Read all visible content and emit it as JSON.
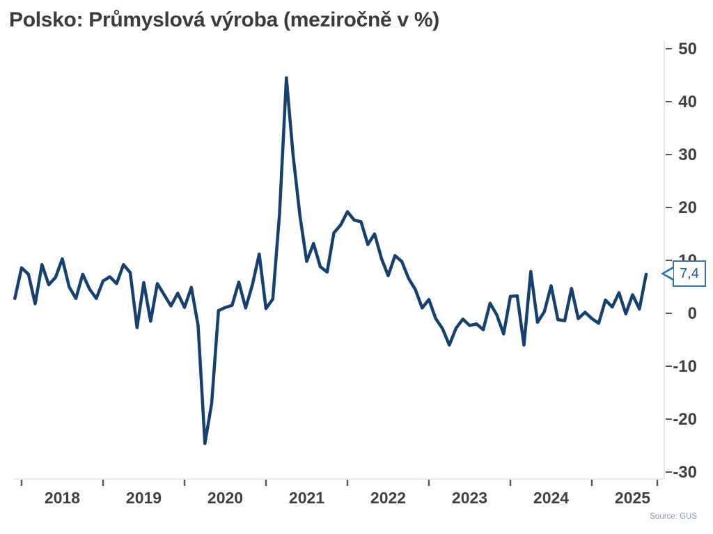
{
  "title": "Polsko: Průmyslová výroba (meziročně v %)",
  "source": "Source: GUS",
  "callout": {
    "label": "7,4"
  },
  "colors": {
    "line": "#16406e",
    "axis_line": "#d9d9d9",
    "tick": "#595959",
    "axis_label": "#404040",
    "title_text": "#3b3b3b",
    "callout_border": "#2e75b6",
    "callout_text": "#1f5c99",
    "source_text": "#8497b0"
  },
  "chart_data": {
    "type": "line",
    "title": "Polsko: Průmyslová výroba (meziročně v %)",
    "xlabel": "",
    "ylabel": "",
    "ylim": [
      -30,
      50
    ],
    "y_ticks": [
      50,
      40,
      30,
      20,
      10,
      0,
      -10,
      -20,
      -30
    ],
    "x_tick_labels": [
      "2018",
      "2019",
      "2020",
      "2021",
      "2022",
      "2023",
      "2024",
      "2025"
    ],
    "grid": false,
    "legend": "none",
    "frequency": "monthly",
    "start": "2017-12",
    "last_value_label": "7,4",
    "series": [
      {
        "name": "Průmyslová výroba (meziročně v %)",
        "values": [
          2.8,
          8.6,
          7.4,
          1.8,
          9.2,
          5.4,
          6.8,
          10.3,
          5.0,
          2.8,
          7.4,
          4.6,
          2.8,
          6.1,
          6.9,
          5.6,
          9.2,
          7.7,
          -2.7,
          5.8,
          -1.5,
          5.6,
          3.5,
          1.4,
          3.8,
          1.1,
          4.9,
          -2.3,
          -24.6,
          -17.0,
          0.5,
          1.1,
          1.5,
          5.9,
          1.0,
          5.4,
          11.2,
          0.9,
          2.7,
          18.9,
          44.5,
          29.8,
          18.4,
          9.8,
          13.2,
          8.8,
          7.8,
          15.2,
          16.7,
          19.2,
          17.6,
          17.3,
          13.0,
          15.0,
          10.4,
          7.1,
          10.9,
          9.8,
          6.6,
          4.5,
          1.0,
          2.6,
          -1.0,
          -2.9,
          -6.0,
          -2.8,
          -1.1,
          -2.3,
          -2.0,
          -3.1,
          1.9,
          -0.3,
          -3.9,
          3.2,
          3.3,
          -6.0,
          7.9,
          -1.7,
          0.3,
          5.2,
          -1.2,
          -1.4,
          4.7,
          -1.0,
          0.2,
          -1.0,
          -1.9,
          2.5,
          1.2,
          3.9,
          -0.1,
          3.5,
          0.8,
          7.4
        ]
      }
    ]
  }
}
